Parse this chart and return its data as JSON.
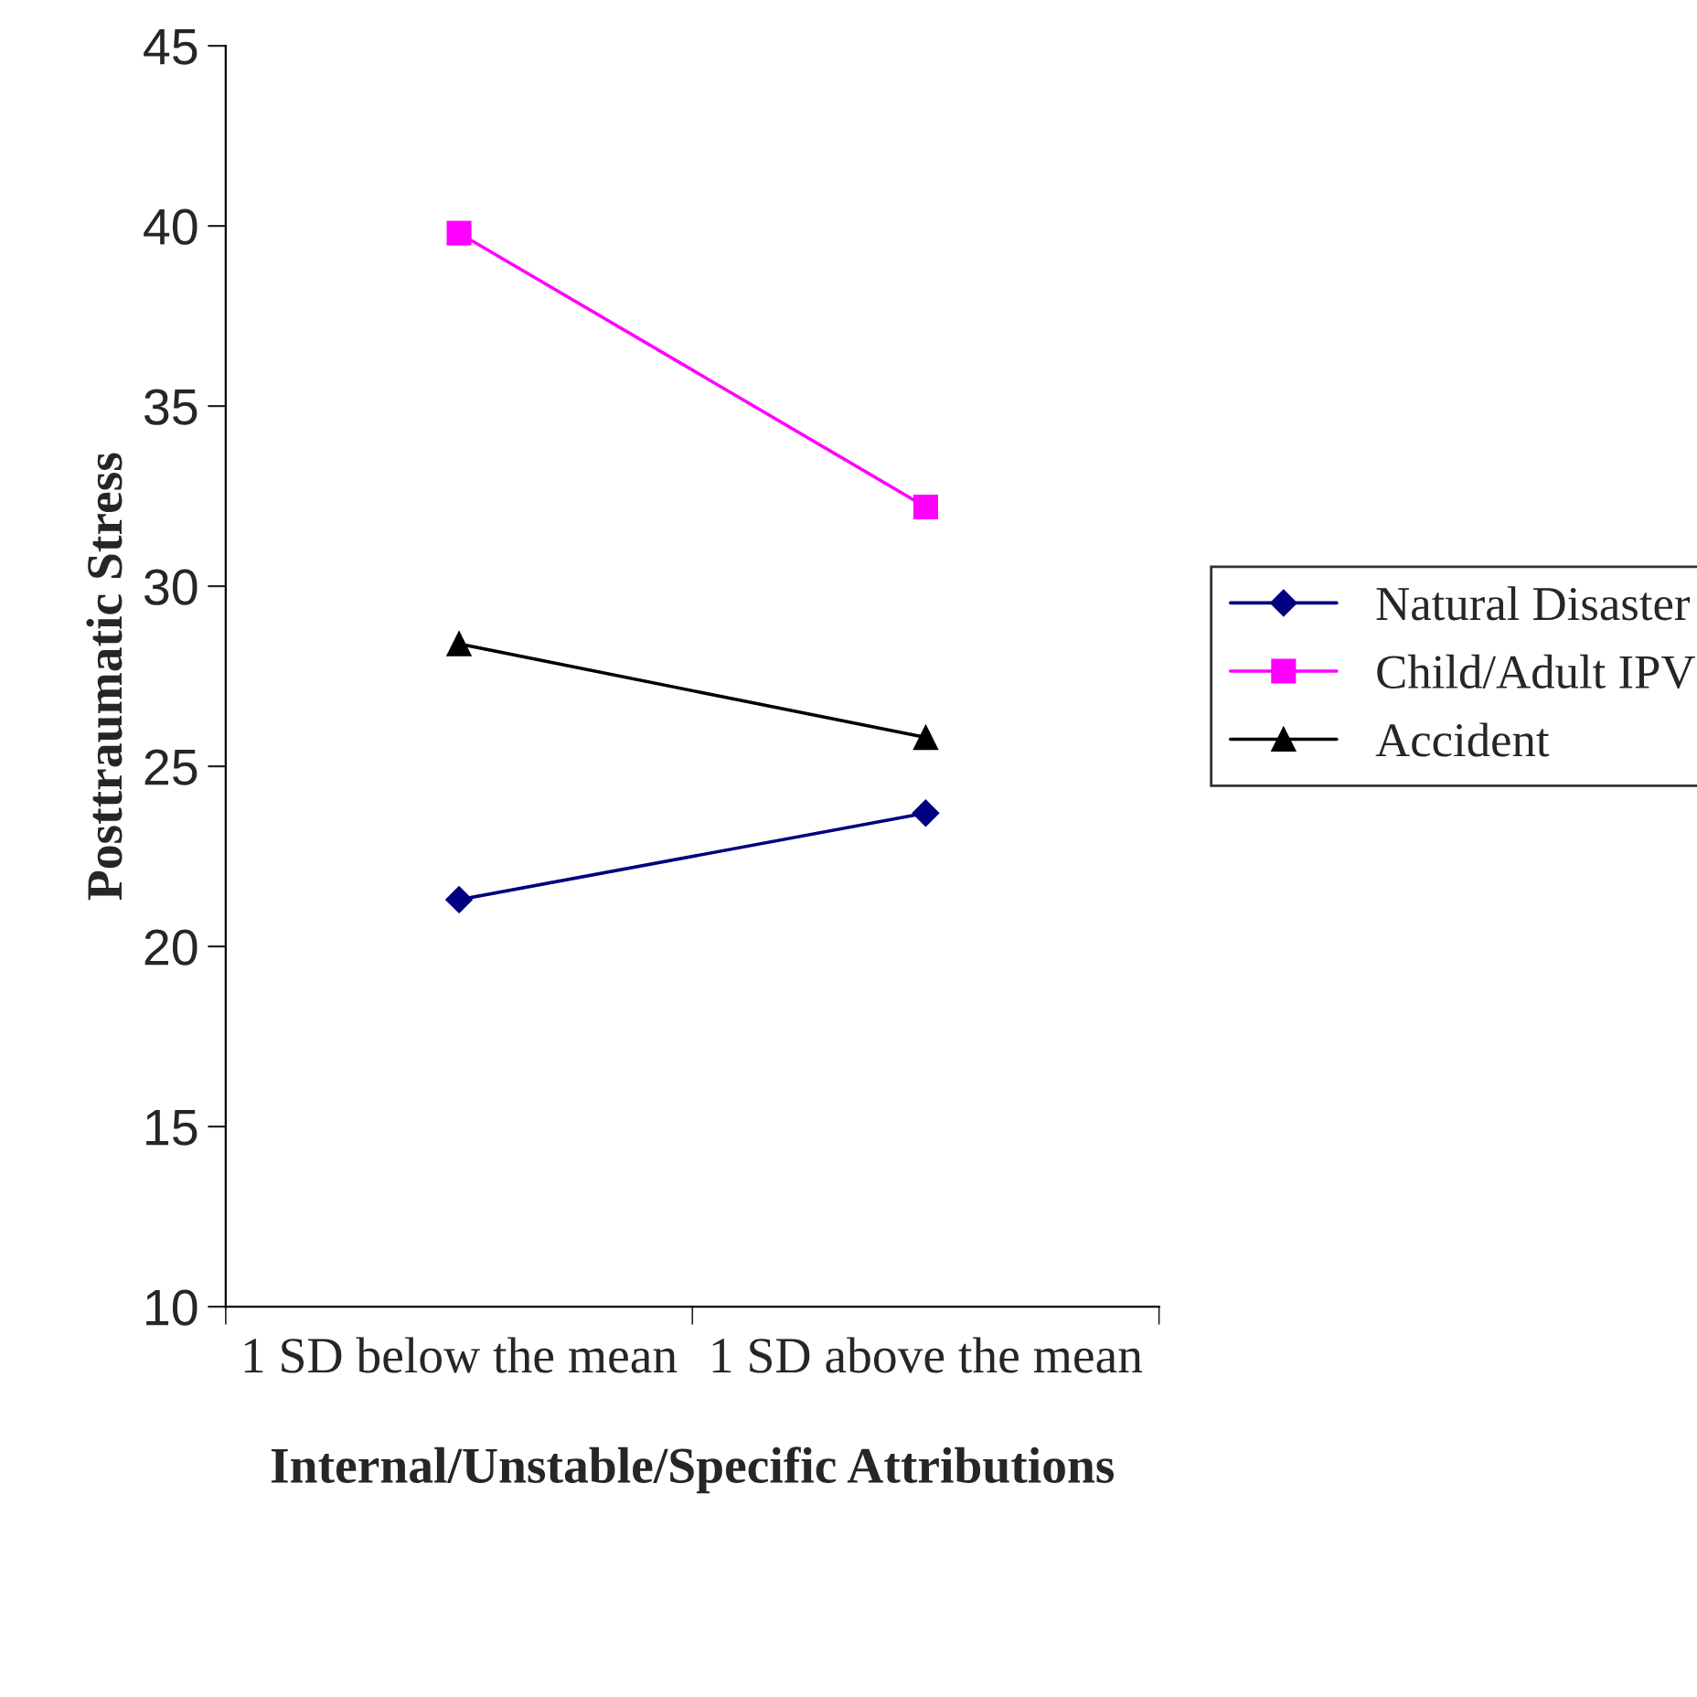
{
  "chart_data": {
    "type": "line",
    "xlabel": "Internal/Unstable/Specific Attributions",
    "ylabel": "Posttraumatic Stress",
    "categories": [
      "1 SD below the mean",
      "1 SD above the mean"
    ],
    "series": [
      {
        "name": "Natural Disaster",
        "color": "#000080",
        "marker": "diamond",
        "values": [
          21.3,
          23.7
        ]
      },
      {
        "name": "Child/Adult IPV",
        "color": "#ff00ff",
        "marker": "square",
        "values": [
          39.8,
          32.2
        ]
      },
      {
        "name": "Accident",
        "color": "#000000",
        "marker": "triangle",
        "values": [
          28.4,
          25.8
        ]
      }
    ],
    "ylim": [
      10,
      45
    ],
    "yticks": [
      10,
      15,
      20,
      25,
      30,
      35,
      40,
      45
    ],
    "grid": false,
    "legend": "right",
    "line_style": "solid"
  }
}
